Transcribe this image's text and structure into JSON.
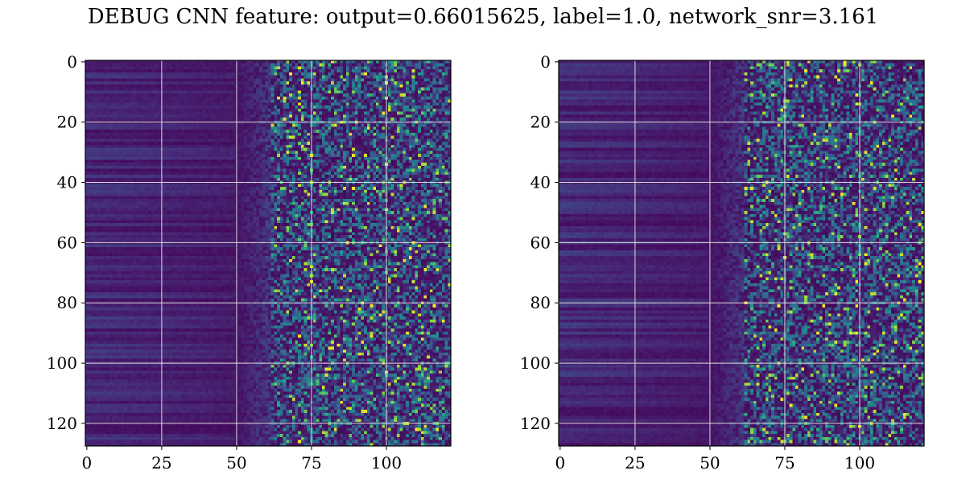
{
  "figure": {
    "title": "DEBUG CNN feature: output=0.66015625, label=1.0, network_snr=3.161"
  },
  "chart_data": [
    {
      "type": "heatmap",
      "title": "",
      "xlabel": "",
      "ylabel": "",
      "colormap": "viridis",
      "shape": [
        128,
        122
      ],
      "xlim": [
        0,
        121
      ],
      "ylim": [
        127,
        0
      ],
      "xticks": [
        0,
        25,
        50,
        75,
        100
      ],
      "yticks": [
        0,
        20,
        40,
        60,
        80,
        100,
        120
      ],
      "grid": true,
      "description_of_values": "low-valued horizontal bands for columns 0-50, noisy higher values for columns 60-121"
    },
    {
      "type": "heatmap",
      "title": "",
      "xlabel": "",
      "ylabel": "",
      "colormap": "viridis",
      "shape": [
        128,
        122
      ],
      "xlim": [
        0,
        121
      ],
      "ylim": [
        127,
        0
      ],
      "xticks": [
        0,
        25,
        50,
        75,
        100
      ],
      "yticks": [
        0,
        20,
        40,
        60,
        80,
        100,
        120
      ],
      "grid": true,
      "description_of_values": "low-valued horizontal bands for columns 0-50, noisy higher values for columns 60-121"
    }
  ],
  "colors": {
    "viridis_low": "#440154",
    "viridis_mid": "#21918c",
    "viridis_high": "#fde725",
    "grid": "#dddddd"
  }
}
